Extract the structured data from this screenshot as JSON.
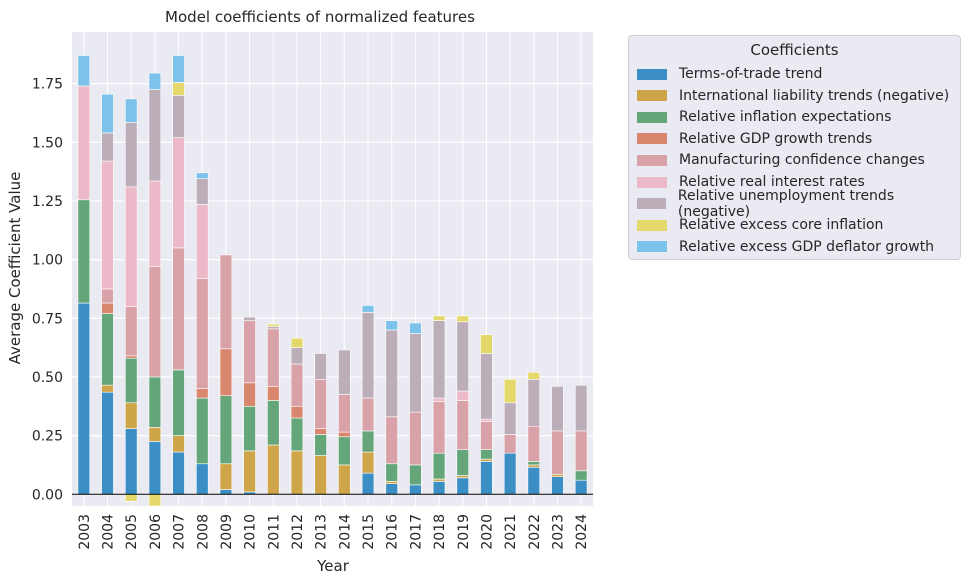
{
  "chart_data": {
    "type": "bar",
    "stacked": true,
    "title": "Model coefficients of normalized features",
    "xlabel": "Year",
    "ylabel": "Average Coefficient Value",
    "ylim": [
      -0.05,
      1.97
    ],
    "yticks": [
      "0.00",
      "0.25",
      "0.50",
      "0.75",
      "1.00",
      "1.25",
      "1.50",
      "1.75"
    ],
    "grid": true,
    "legend_title": "Coefficients",
    "legend_position": "outside-right",
    "categories": [
      "2003",
      "2004",
      "2005",
      "2006",
      "2007",
      "2008",
      "2009",
      "2010",
      "2011",
      "2012",
      "2013",
      "2014",
      "2015",
      "2016",
      "2017",
      "2018",
      "2019",
      "2020",
      "2021",
      "2022",
      "2023",
      "2024"
    ],
    "series": [
      {
        "name": "Terms-of-trade trend",
        "color": "#3b8fc4",
        "values": [
          0.815,
          0.435,
          0.28,
          0.225,
          0.18,
          0.13,
          0.02,
          0.01,
          0.0,
          0.0,
          0.0,
          0.0,
          0.09,
          0.045,
          0.04,
          0.055,
          0.07,
          0.14,
          0.175,
          0.115,
          0.075,
          0.06
        ]
      },
      {
        "name": "International liability trends (negative)",
        "color": "#cfa54a",
        "values": [
          0.0,
          0.03,
          0.11,
          0.06,
          0.07,
          0.0,
          0.11,
          0.175,
          0.21,
          0.185,
          0.165,
          0.125,
          0.09,
          0.01,
          0.0,
          0.01,
          0.01,
          0.01,
          0.0,
          0.01,
          0.01,
          0.0
        ]
      },
      {
        "name": "Relative inflation expectations",
        "color": "#64a67a",
        "values": [
          0.44,
          0.305,
          0.19,
          0.215,
          0.28,
          0.28,
          0.29,
          0.19,
          0.19,
          0.14,
          0.09,
          0.12,
          0.09,
          0.075,
          0.085,
          0.11,
          0.11,
          0.04,
          0.0,
          0.015,
          0.0,
          0.04
        ]
      },
      {
        "name": "Relative GDP growth trends",
        "color": "#d9866e",
        "values": [
          0.0,
          0.045,
          0.01,
          0.0,
          0.0,
          0.04,
          0.2,
          0.1,
          0.06,
          0.05,
          0.025,
          0.02,
          0.0,
          0.0,
          0.0,
          0.0,
          0.0,
          0.0,
          0.0,
          0.0,
          0.0,
          0.0
        ]
      },
      {
        "name": "Manufacturing confidence changes",
        "color": "#d8a2a8",
        "values": [
          0.0,
          0.06,
          0.21,
          0.47,
          0.52,
          0.47,
          0.4,
          0.265,
          0.245,
          0.18,
          0.21,
          0.16,
          0.14,
          0.2,
          0.225,
          0.22,
          0.21,
          0.12,
          0.08,
          0.15,
          0.185,
          0.17
        ]
      },
      {
        "name": "Relative real interest rates",
        "color": "#ebb9c7",
        "values": [
          0.485,
          0.545,
          0.51,
          0.365,
          0.47,
          0.315,
          0.0,
          0.0,
          0.0,
          0.0,
          0.0,
          0.0,
          0.0,
          0.0,
          0.0,
          0.015,
          0.04,
          0.01,
          0.0,
          0.0,
          0.0,
          0.0
        ]
      },
      {
        "name": "Relative unemployment trends (negative)",
        "color": "#bcaeb9",
        "values": [
          0.0,
          0.12,
          0.275,
          0.39,
          0.18,
          0.11,
          0.0,
          0.015,
          0.01,
          0.07,
          0.11,
          0.19,
          0.365,
          0.37,
          0.335,
          0.33,
          0.295,
          0.28,
          0.135,
          0.2,
          0.19,
          0.195
        ]
      },
      {
        "name": "Relative excess core inflation",
        "color": "#e4d86a",
        "values": [
          0.0,
          0.0,
          -0.03,
          -0.05,
          0.055,
          0.0,
          0.0,
          0.0,
          0.01,
          0.04,
          0.0,
          0.0,
          0.0,
          0.0,
          0.0,
          0.02,
          0.025,
          0.08,
          0.1,
          0.03,
          0.0,
          0.0
        ]
      },
      {
        "name": "Relative excess GDP deflator growth",
        "color": "#7cc2ea",
        "values": [
          0.13,
          0.165,
          0.1,
          0.07,
          0.115,
          0.025,
          0.0,
          0.0,
          0.0,
          0.0,
          0.0,
          0.0,
          0.03,
          0.04,
          0.045,
          0.0,
          0.0,
          0.0,
          0.0,
          0.0,
          0.0,
          0.0
        ]
      }
    ]
  }
}
